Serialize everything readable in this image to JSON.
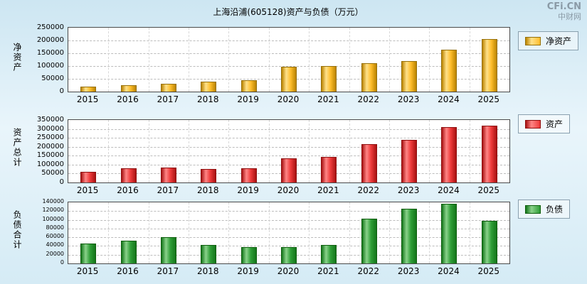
{
  "header": {
    "title": "上海沿浦(605128)资产与负债（万元）",
    "logo": "CFi.CN",
    "logo_sub": "中财网"
  },
  "chart_data": [
    {
      "type": "bar",
      "title": "净资产",
      "ylabel": "净资产",
      "legend": "净资产",
      "legend_position": "right",
      "grid": true,
      "categories": [
        "2015",
        "2016",
        "2017",
        "2018",
        "2019",
        "2020",
        "2021",
        "2022",
        "2023",
        "2024",
        "2025"
      ],
      "values": [
        20000,
        25000,
        30000,
        40000,
        45000,
        98000,
        100000,
        112000,
        120000,
        165000,
        205000
      ],
      "ylim": [
        0,
        250000
      ],
      "yticks": [
        0,
        50000,
        100000,
        150000,
        200000,
        250000
      ],
      "colors": {
        "light": "#ffe18a",
        "mid": "#ffbe2d",
        "dark": "#bb8400",
        "border": "#96700a"
      }
    },
    {
      "type": "bar",
      "title": "资产总计",
      "ylabel": "资产总计",
      "legend": "资产",
      "legend_position": "right",
      "grid": true,
      "categories": [
        "2015",
        "2016",
        "2017",
        "2018",
        "2019",
        "2020",
        "2021",
        "2022",
        "2023",
        "2024",
        "2025"
      ],
      "values": [
        60000,
        78000,
        85000,
        75000,
        80000,
        135000,
        145000,
        215000,
        240000,
        310000,
        320000
      ],
      "ylim": [
        0,
        350000
      ],
      "yticks": [
        0,
        50000,
        100000,
        150000,
        200000,
        250000,
        300000,
        350000
      ],
      "colors": {
        "light": "#ff8585",
        "mid": "#ee3b3b",
        "dark": "#a81212",
        "border": "#8f0f0f"
      }
    },
    {
      "type": "bar",
      "title": "负债合计",
      "ylabel": "负债合计",
      "legend": "负债",
      "legend_position": "right",
      "grid": true,
      "categories": [
        "2015",
        "2016",
        "2017",
        "2018",
        "2019",
        "2020",
        "2021",
        "2022",
        "2023",
        "2024",
        "2025"
      ],
      "values": [
        45000,
        52000,
        60000,
        42000,
        37000,
        38000,
        43000,
        103000,
        125000,
        137000,
        97000
      ],
      "ylim": [
        0,
        140000
      ],
      "yticks": [
        0,
        20000,
        40000,
        60000,
        80000,
        100000,
        120000,
        140000
      ],
      "colors": {
        "light": "#8ad28a",
        "mid": "#2f9e37",
        "dark": "#14761a",
        "border": "#0e5e0e"
      }
    }
  ]
}
